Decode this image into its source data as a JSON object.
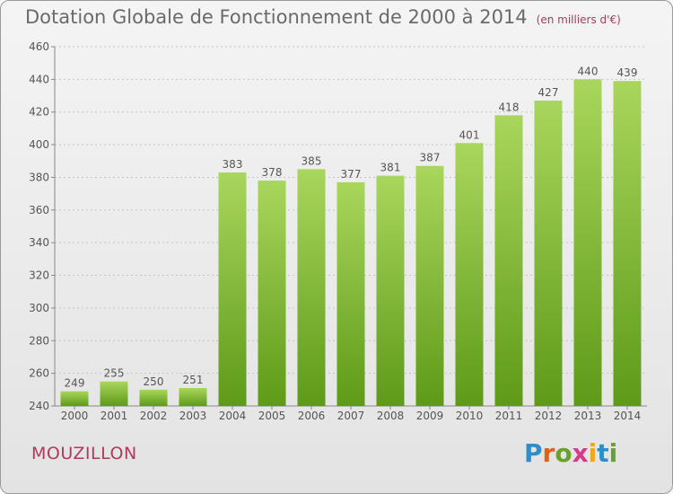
{
  "title": "Dotation Globale de Fonctionnement de 2000 à 2014",
  "unit_note": "(en milliers d'€)",
  "commune": "MOUZILLON",
  "logo": {
    "text": "Proxiti",
    "letter_colors": [
      "#2d8fc9",
      "#e0601c",
      "#6aa12c",
      "#d43c8a",
      "#f0a81a",
      "#2d8fc9",
      "#6aa12c"
    ]
  },
  "colors": {
    "bar_top": "#a9d65c",
    "bar_bottom": "#5e9a18",
    "label": "#555555",
    "commune": "#b03a5b"
  },
  "chart_data": {
    "type": "bar",
    "categories": [
      "2000",
      "2001",
      "2002",
      "2003",
      "2004",
      "2005",
      "2006",
      "2007",
      "2008",
      "2009",
      "2010",
      "2011",
      "2012",
      "2013",
      "2014"
    ],
    "values": [
      249,
      255,
      250,
      251,
      383,
      378,
      385,
      377,
      381,
      387,
      401,
      418,
      427,
      440,
      439
    ],
    "ylim": [
      240,
      460
    ],
    "yticks": [
      240,
      260,
      280,
      300,
      320,
      340,
      360,
      380,
      400,
      420,
      440,
      460
    ],
    "grid": true
  }
}
